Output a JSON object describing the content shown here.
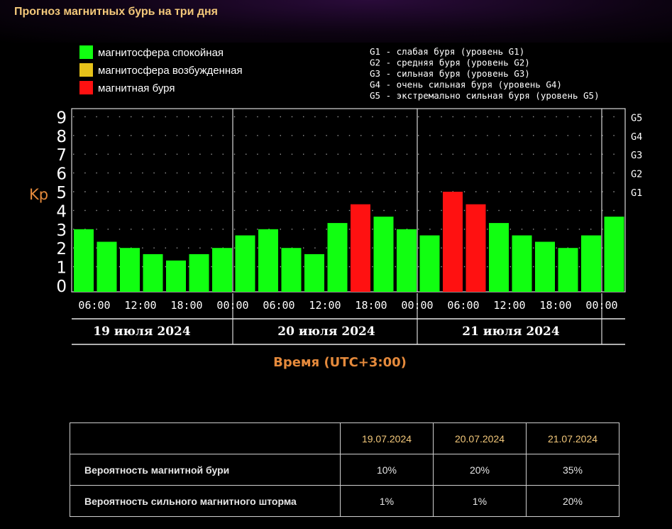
{
  "page": {
    "title": "Прогноз магнитных бурь на три дня"
  },
  "legend": {
    "items": [
      {
        "label": "магнитосфера спокойная",
        "color": "#11ff11"
      },
      {
        "label": "магнитосфера возбужденная",
        "color": "#e6c21a"
      },
      {
        "label": "магнитная буря",
        "color": "#ff1111"
      }
    ],
    "g_levels": [
      "G1 - слабая буря (уровень G1)",
      "G2 - средняя буря (уровень G2)",
      "G3 - сильная буря (уровень G3)",
      "G4 - очень сильная буря (уровень G4)",
      "G5 - экстремально сильная буря (уровень G5)"
    ]
  },
  "chart_data": {
    "type": "bar",
    "ylabel": "Kp",
    "xlabel": "Время (UTC+3:00)",
    "ylim": [
      0,
      9
    ],
    "yticks": [
      "0",
      "1",
      "2",
      "3",
      "4",
      "5",
      "6",
      "7",
      "8",
      "9"
    ],
    "right_ticks": [
      {
        "label": "G1",
        "kp": 5
      },
      {
        "label": "G2",
        "kp": 6
      },
      {
        "label": "G3",
        "kp": 7
      },
      {
        "label": "G4",
        "kp": 8
      },
      {
        "label": "G5",
        "kp": 9
      }
    ],
    "xtick_labels": [
      "06:00",
      "12:00",
      "18:00",
      "00:00",
      "06:00",
      "12:00",
      "18:00",
      "00:00",
      "06:00",
      "12:00",
      "18:00",
      "00:00"
    ],
    "days": [
      "19 июля 2024",
      "20 июля 2024",
      "21 июля 2024"
    ],
    "values": [
      3.0,
      2.33,
      2.0,
      1.67,
      1.33,
      1.67,
      2.0,
      2.67,
      3.0,
      2.0,
      1.67,
      3.33,
      4.33,
      3.67,
      3.0,
      2.67,
      5.0,
      4.33,
      3.33,
      2.67,
      2.33,
      2.0,
      2.67,
      3.67
    ],
    "colors": [
      "green",
      "green",
      "green",
      "green",
      "green",
      "green",
      "green",
      "green",
      "green",
      "green",
      "green",
      "green",
      "red",
      "green",
      "green",
      "green",
      "red",
      "red",
      "green",
      "green",
      "green",
      "green",
      "green",
      "green"
    ],
    "palette": {
      "green": "#11ff11",
      "yellow": "#e6c21a",
      "red": "#ff1111"
    },
    "grid": true
  },
  "table": {
    "headers": [
      "",
      "19.07.2024",
      "20.07.2024",
      "21.07.2024"
    ],
    "rows": [
      {
        "label": "Вероятность магнитной бури",
        "values": [
          "10%",
          "20%",
          "35%"
        ]
      },
      {
        "label": "Вероятность сильного магнитного шторма",
        "values": [
          "1%",
          "1%",
          "20%"
        ]
      }
    ]
  }
}
